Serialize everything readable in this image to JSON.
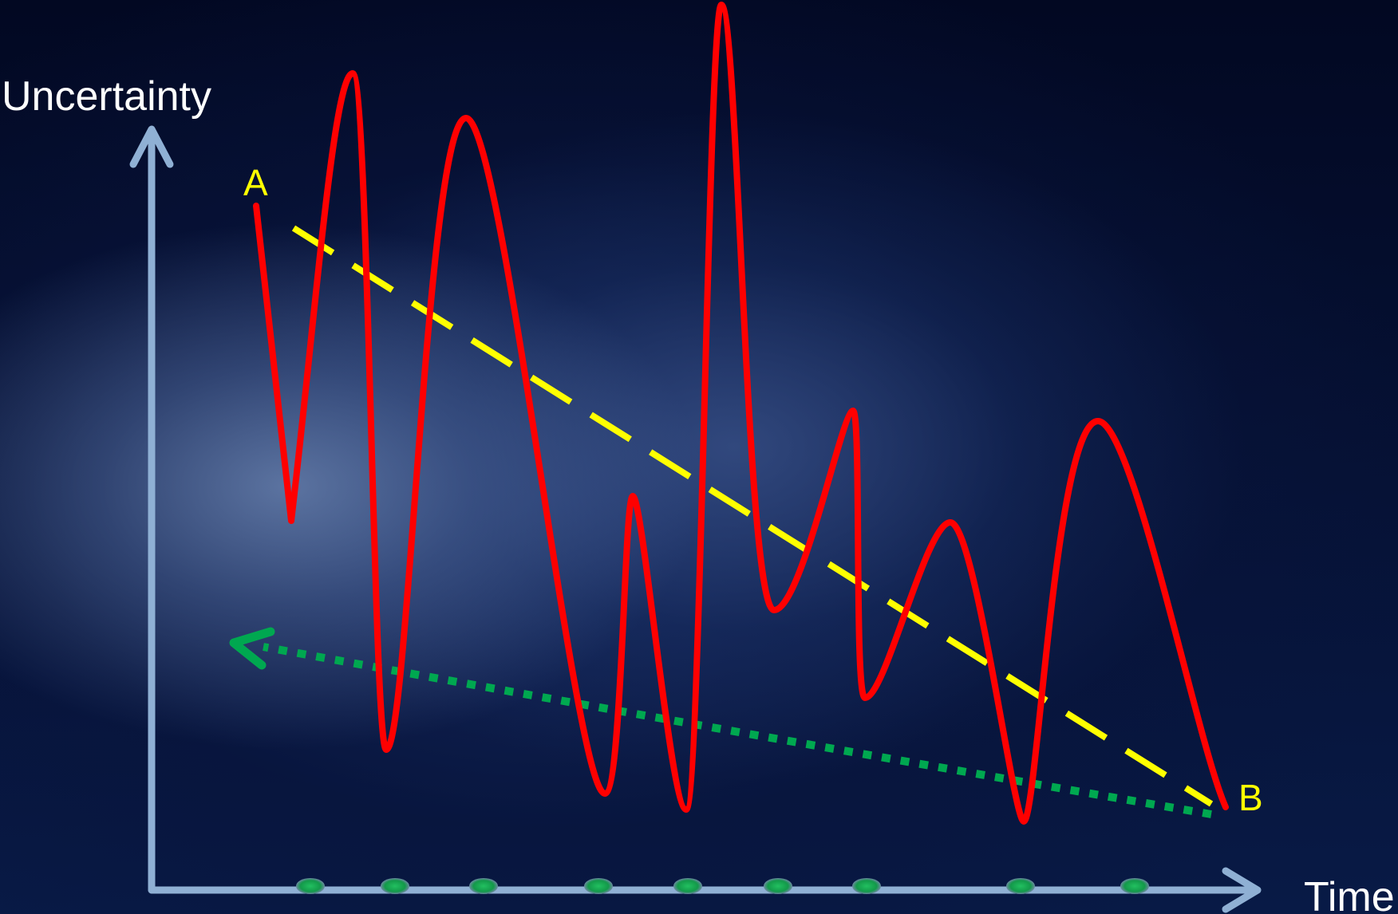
{
  "labels": {
    "y_axis": "Uncertainty",
    "x_axis": "Time",
    "start_point": "A",
    "end_point": "B"
  },
  "colors": {
    "axis": "#8fb0d4",
    "actual_path": "#ff0000",
    "planned_trend": "#ffff00",
    "return_arrow": "#00a850",
    "markers": "#1aa050",
    "label_text": "#ffffff",
    "point_labels": "#ffff00"
  },
  "x_axis_marker_count": 9
}
